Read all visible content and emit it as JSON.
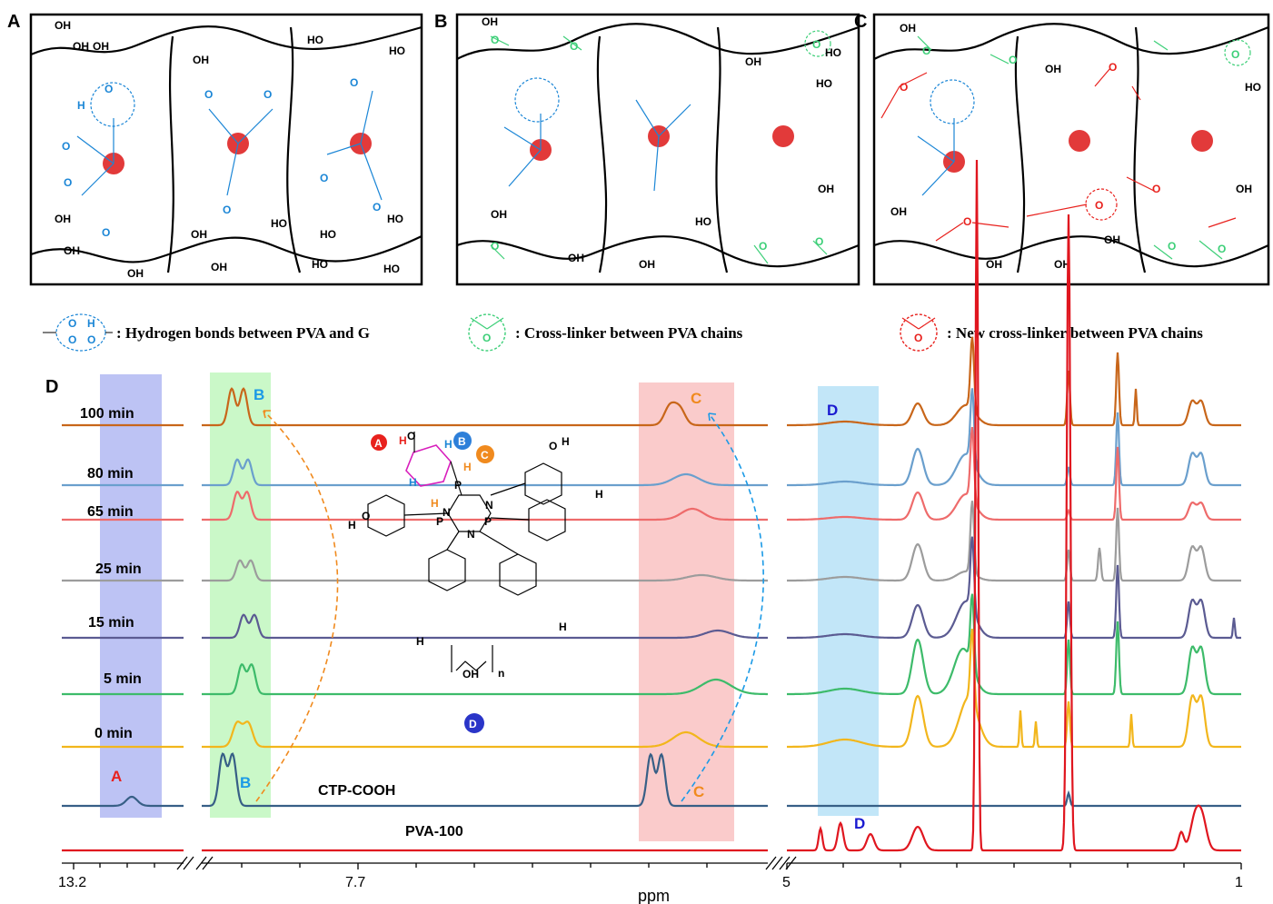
{
  "panels": {
    "a_label": "A",
    "b_label": "B",
    "c_label": "C",
    "d_label": "D"
  },
  "groups": {
    "oh": "OH",
    "ho": "HO",
    "h": "H",
    "o": "O",
    "c": "C"
  },
  "legend": {
    "hbond": ": Hydrogen bonds between PVA and G",
    "crosslinker": ": Cross-linker between PVA chains",
    "new_crosslinker": ": New cross-linker between PVA chains"
  },
  "molecule": {
    "marker_a": "A",
    "marker_b": "B",
    "marker_c": "C",
    "marker_d": "D",
    "atom_h": "H",
    "atom_o": "O",
    "atom_n": "N",
    "atom_p": "P",
    "subscript_n": "n",
    "oh": "OH"
  },
  "chart_data": {
    "type": "line",
    "xlabel": "ppm",
    "x_ticks": [
      "13.2",
      "7.7",
      "5",
      "1"
    ],
    "series": [
      {
        "name": "100 min",
        "color": "#c8661a"
      },
      {
        "name": "80 min",
        "color": "#6a9fcd"
      },
      {
        "name": "65 min",
        "color": "#ee6b6b"
      },
      {
        "name": "25 min",
        "color": "#9c9c9c"
      },
      {
        "name": "15 min",
        "color": "#5b5b92"
      },
      {
        "name": "5 min",
        "color": "#3dbb6a"
      },
      {
        "name": "0 min",
        "color": "#f2b61c"
      },
      {
        "name": "CTP-COOH",
        "color": "#375f86"
      },
      {
        "name": "PVA-100",
        "color": "#e0161f"
      }
    ],
    "regions": [
      {
        "label": "A",
        "color": "#2a2ad9"
      },
      {
        "label": "B",
        "color": "#1ba3ee"
      },
      {
        "label": "C",
        "color": "#f08a1e"
      },
      {
        "label": "D",
        "color": "#1a1ad0"
      }
    ]
  }
}
